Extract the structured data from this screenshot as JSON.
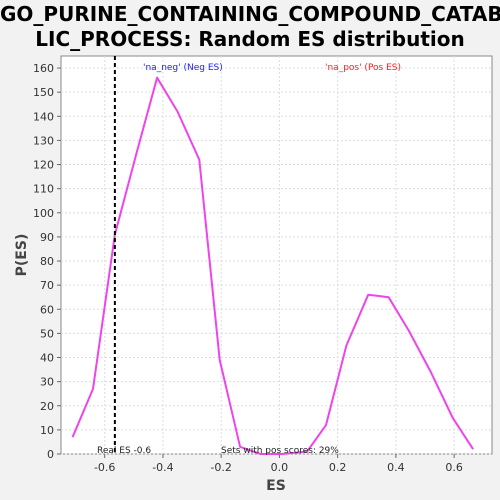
{
  "chart_data": {
    "type": "line",
    "title_lines": [
      "GO_PURINE_CONTAINING_COMPOUND_CATABO",
      "LIC_PROCESS: Random ES distribution"
    ],
    "xlabel": "ES",
    "ylabel": "P(ES)",
    "xlim": [
      -0.75,
      0.73
    ],
    "ylim": [
      0,
      165
    ],
    "x_ticks": [
      -0.6,
      -0.4,
      -0.2,
      0.0,
      0.2,
      0.4,
      0.6
    ],
    "x_tick_labels": [
      "-0.6",
      "-0.4",
      "-0.2",
      "0.0",
      "0.2",
      "0.4",
      "0.6"
    ],
    "y_ticks": [
      0,
      10,
      20,
      30,
      40,
      50,
      60,
      70,
      80,
      90,
      100,
      110,
      120,
      130,
      140,
      150,
      160
    ],
    "y_tick_labels": [
      "0",
      "10",
      "20",
      "30",
      "40",
      "50",
      "60",
      "70",
      "80",
      "90",
      "100",
      "110",
      "120",
      "130",
      "140",
      "150",
      "160"
    ],
    "grid": true,
    "series": [
      {
        "color": "#ee44ee",
        "x": [
          -0.71,
          -0.64,
          -0.565,
          -0.49,
          -0.42,
          -0.35,
          -0.275,
          -0.205,
          -0.135,
          -0.065,
          0.01,
          0.095,
          0.16,
          0.23,
          0.305,
          0.375,
          0.445,
          0.52,
          0.595,
          0.665
        ],
        "y": [
          7,
          27,
          91,
          125,
          156,
          142,
          122,
          39,
          3,
          0,
          0,
          1,
          12,
          45,
          66,
          65,
          51,
          34,
          15,
          2
        ]
      }
    ],
    "real_es": -0.565,
    "annotations": {
      "legend_neg": "'na_neg' (Neg ES)",
      "legend_pos": "'na_pos' (Pos ES)",
      "real_es_label": "Real ES -0.6",
      "pos_scores_label": "Sets with pos scores: 29%"
    }
  }
}
